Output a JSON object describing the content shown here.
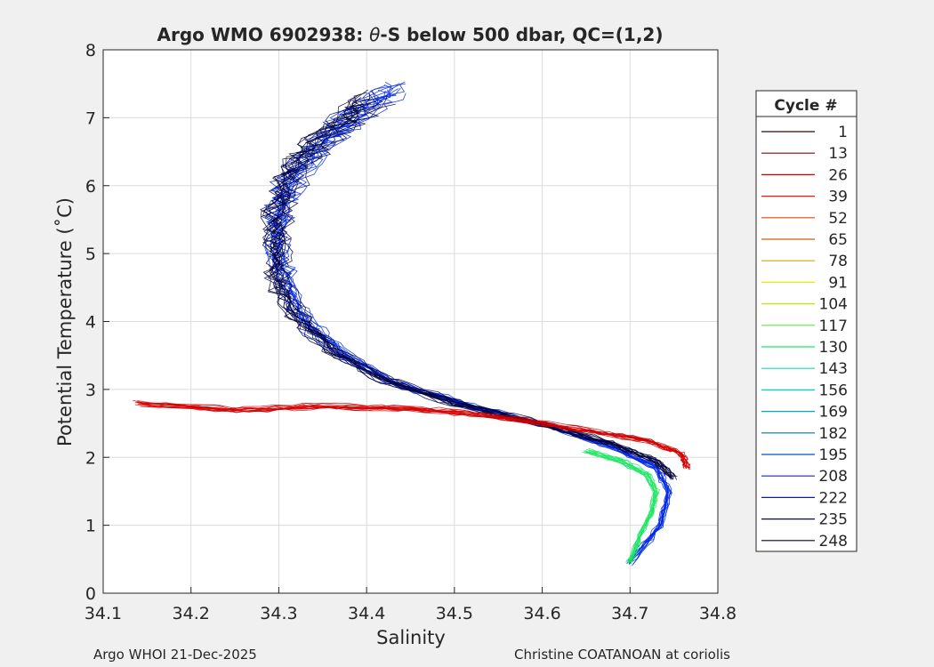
{
  "chart_data": {
    "type": "line",
    "title": {
      "prefix": "Argo WMO 6902938: ",
      "theta": "θ",
      "suffix": "-S below 500 dbar,  QC=(1,2)"
    },
    "xlabel": "Salinity",
    "ylabel": "Potential Temperature (˚C)",
    "xlim": [
      34.1,
      34.8
    ],
    "ylim": [
      0,
      8
    ],
    "x_ticks": [
      34.1,
      34.2,
      34.3,
      34.4,
      34.5,
      34.6,
      34.7,
      34.8
    ],
    "y_ticks": [
      0,
      1,
      2,
      3,
      4,
      5,
      6,
      7,
      8
    ],
    "x_tick_labels": [
      "34.1",
      "34.2",
      "34.3",
      "34.4",
      "34.5",
      "34.6",
      "34.7",
      "34.8"
    ],
    "y_tick_labels": [
      "0",
      "1",
      "2",
      "3",
      "4",
      "5",
      "6",
      "7",
      "8"
    ],
    "grid": true,
    "legend": {
      "title": "Cycle #",
      "placement": "right-outside",
      "entries": [
        {
          "label": "1",
          "color": "#3a0000"
        },
        {
          "label": "13",
          "color": "#8c0000"
        },
        {
          "label": "26",
          "color": "#d40000"
        },
        {
          "label": "39",
          "color": "#ee1a00"
        },
        {
          "label": "52",
          "color": "#e8460a"
        },
        {
          "label": "65",
          "color": "#c86400"
        },
        {
          "label": "78",
          "color": "#d2aa00"
        },
        {
          "label": "91",
          "color": "#e8e800"
        },
        {
          "label": "104",
          "color": "#b4f000"
        },
        {
          "label": "117",
          "color": "#5aee3c"
        },
        {
          "label": "130",
          "color": "#1ee664"
        },
        {
          "label": "143",
          "color": "#1ed8b4"
        },
        {
          "label": "156",
          "color": "#00d2d2"
        },
        {
          "label": "169",
          "color": "#00aab4"
        },
        {
          "label": "182",
          "color": "#007896"
        },
        {
          "label": "195",
          "color": "#0050c8"
        },
        {
          "label": "208",
          "color": "#1e28b4"
        },
        {
          "label": "222",
          "color": "#0a1e96"
        },
        {
          "label": "235",
          "color": "#0a0a50"
        },
        {
          "label": "248",
          "color": "#00003c"
        }
      ]
    },
    "profile_families": [
      {
        "name": "late-cycles-warm-branch",
        "color": "#0028e6",
        "path": [
          [
            34.43,
            7.45
          ],
          [
            34.38,
            6.95
          ],
          [
            34.34,
            6.5
          ],
          [
            34.31,
            6.0
          ],
          [
            34.3,
            5.5
          ],
          [
            34.3,
            5.0
          ],
          [
            34.31,
            4.5
          ],
          [
            34.33,
            4.0
          ],
          [
            34.37,
            3.55
          ],
          [
            34.43,
            3.1
          ],
          [
            34.52,
            2.75
          ],
          [
            34.61,
            2.45
          ],
          [
            34.68,
            2.15
          ],
          [
            34.73,
            1.85
          ],
          [
            34.745,
            1.5
          ],
          [
            34.735,
            1.0
          ],
          [
            34.7,
            0.45
          ]
        ]
      },
      {
        "name": "late-cycles-dark",
        "color": "#00003c",
        "path": [
          [
            34.41,
            7.3
          ],
          [
            34.36,
            6.8
          ],
          [
            34.32,
            6.3
          ],
          [
            34.3,
            5.7
          ],
          [
            34.3,
            5.1
          ],
          [
            34.3,
            4.6
          ],
          [
            34.32,
            4.1
          ],
          [
            34.36,
            3.6
          ],
          [
            34.42,
            3.15
          ],
          [
            34.5,
            2.8
          ],
          [
            34.6,
            2.5
          ],
          [
            34.68,
            2.2
          ],
          [
            34.73,
            1.95
          ],
          [
            34.75,
            1.7
          ]
        ]
      },
      {
        "name": "early-cycles-red",
        "color": "#d40000",
        "path": [
          [
            34.14,
            2.8
          ],
          [
            34.25,
            2.7
          ],
          [
            34.35,
            2.75
          ],
          [
            34.45,
            2.72
          ],
          [
            34.55,
            2.6
          ],
          [
            34.64,
            2.42
          ],
          [
            34.72,
            2.25
          ],
          [
            34.76,
            2.05
          ],
          [
            34.765,
            1.85
          ]
        ]
      },
      {
        "name": "mid-cycles-green",
        "color": "#1ee664",
        "path": [
          [
            34.65,
            2.1
          ],
          [
            34.69,
            1.95
          ],
          [
            34.72,
            1.75
          ],
          [
            34.73,
            1.5
          ],
          [
            34.725,
            1.2
          ],
          [
            34.71,
            0.8
          ],
          [
            34.7,
            0.45
          ]
        ]
      }
    ]
  },
  "footer": {
    "left": "Argo WHOI 21-Dec-2025",
    "right": "Christine COATANOAN at coriolis"
  }
}
